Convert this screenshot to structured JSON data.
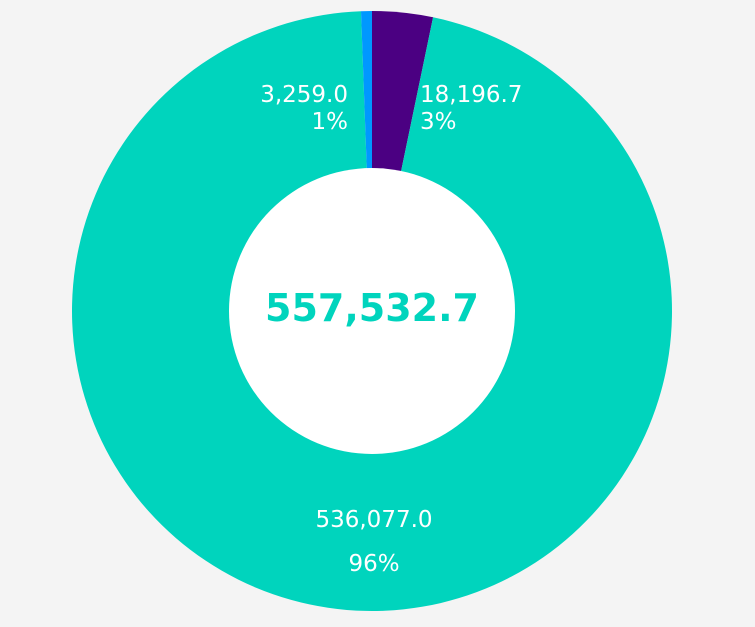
{
  "chart_data": {
    "type": "pie",
    "subtype": "donut",
    "title": "",
    "total_label": "557,532.7",
    "total": 557532.7,
    "slices": [
      {
        "value": 18196.7,
        "value_label": "18,196.7",
        "percent_label": "3%",
        "color": "#4b0082"
      },
      {
        "value": 536077.0,
        "value_label": "536,077.0",
        "percent_label": "96%",
        "color": "#00d4bd"
      },
      {
        "value": 3259.0,
        "value_label": "3,259.0",
        "percent_label": "1%",
        "color": "#0098ff"
      }
    ],
    "start_angle": "top (12 o'clock), clockwise",
    "legend": "none"
  },
  "colors": {
    "background": "#f4f4f4",
    "hole": "#ffffff",
    "total_text": "#00d4bd",
    "label_text": "#ffffff"
  }
}
